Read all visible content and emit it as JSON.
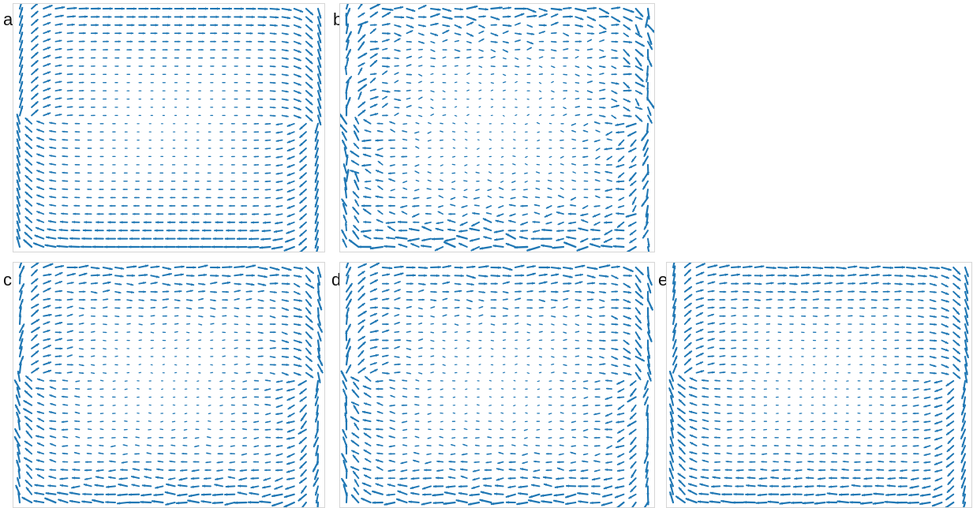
{
  "figure": {
    "arrow_color": "#1f77b4",
    "frame_color": "#d6d6d6",
    "panels": [
      {
        "id": "a",
        "label": "a",
        "noise": 0.0
      },
      {
        "id": "b",
        "label": "b",
        "noise": 0.45
      },
      {
        "id": "c",
        "label": "c",
        "noise": 0.22
      },
      {
        "id": "d",
        "label": "d",
        "noise": 0.3
      },
      {
        "id": "e",
        "label": "e",
        "noise": 0.12
      }
    ]
  }
}
